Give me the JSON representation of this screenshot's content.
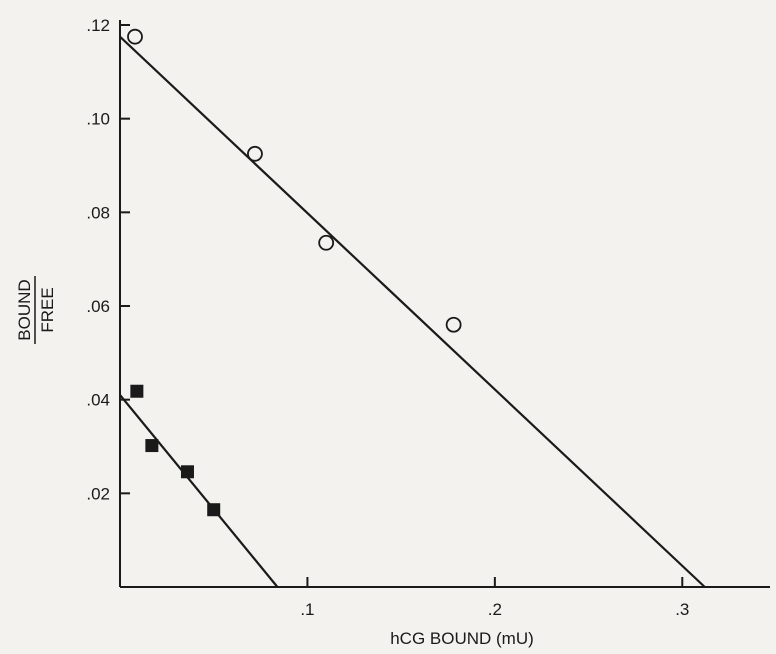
{
  "chart_data": {
    "type": "scatter",
    "title": "",
    "xlabel": "hCG BOUND (mU)",
    "ylabel_numerator": "BOUND",
    "ylabel_denominator": "FREE",
    "xlim": [
      0,
      0.35
    ],
    "ylim": [
      0,
      0.12
    ],
    "x_ticks": [
      {
        "value": 0.1,
        "label": ".1"
      },
      {
        "value": 0.2,
        "label": ".2"
      },
      {
        "value": 0.3,
        "label": ".3"
      }
    ],
    "y_ticks": [
      {
        "value": 0.02,
        "label": ".02"
      },
      {
        "value": 0.04,
        "label": ".04"
      },
      {
        "value": 0.06,
        "label": ".06"
      },
      {
        "value": 0.08,
        "label": ".08"
      },
      {
        "value": 0.1,
        "label": ".10"
      },
      {
        "value": 0.12,
        "label": ".12"
      }
    ],
    "grid": false,
    "legend": "none",
    "series": [
      {
        "marker": "open-circle",
        "points": [
          {
            "x": 0.008,
            "y": 0.1175
          },
          {
            "x": 0.072,
            "y": 0.0925
          },
          {
            "x": 0.11,
            "y": 0.0735
          },
          {
            "x": 0.178,
            "y": 0.056
          }
        ],
        "fit_line": {
          "x0": 0,
          "y0": 0.1175,
          "x1": 0.312,
          "y1": 0
        }
      },
      {
        "marker": "filled-square",
        "points": [
          {
            "x": 0.009,
            "y": 0.0418
          },
          {
            "x": 0.017,
            "y": 0.0302
          },
          {
            "x": 0.036,
            "y": 0.0246
          },
          {
            "x": 0.05,
            "y": 0.0165
          }
        ],
        "fit_line": {
          "x0": 0,
          "y0": 0.041,
          "x1": 0.084,
          "y1": 0
        }
      }
    ],
    "colors": {
      "ink": "#1a1a1a",
      "background": "#f3f2ee"
    }
  }
}
